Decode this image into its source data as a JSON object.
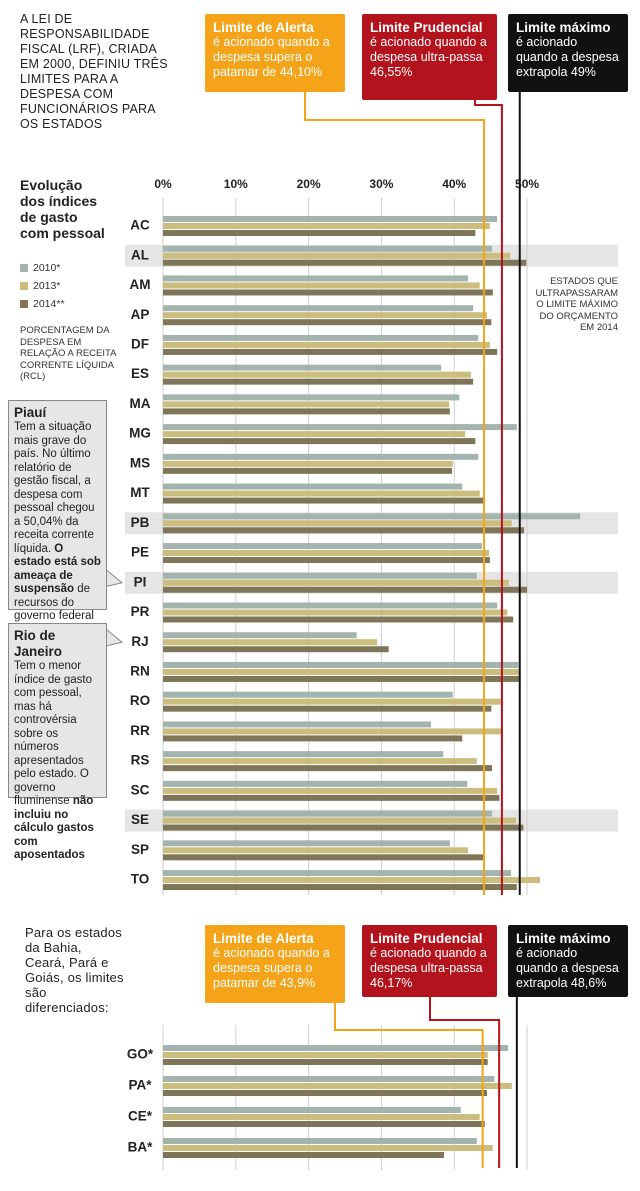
{
  "chart_data": [
    {
      "type": "bar",
      "intro": "A LEI DE RESPONSABILIDADE FISCAL (LRF), CRIADA EM 2000, DEFINIU TRÊS LIMITES PARA A DESPESA COM FUNCIONÁRIOS PARA OS ESTADOS",
      "legend_title": "Evolução dos índices de gasto com pessoal",
      "note": "PORCENTAGEM DA DESPESA EM RELAÇÃO A RECEITA CORRENTE LÍQUIDA (RCL)",
      "annotation": "ESTADOS QUE ULTRAPASSARAM O LIMITE MÁXIMO DO ORÇAMENTO EM 2014",
      "categories": [
        "AC",
        "AL",
        "AM",
        "AP",
        "DF",
        "ES",
        "MA",
        "MG",
        "MS",
        "MT",
        "PB",
        "PE",
        "PI",
        "PR",
        "RJ",
        "RN",
        "RO",
        "RR",
        "RS",
        "SC",
        "SE",
        "SP",
        "TO"
      ],
      "highlighted": [
        false,
        true,
        false,
        false,
        false,
        false,
        false,
        false,
        false,
        false,
        true,
        false,
        true,
        false,
        false,
        false,
        false,
        false,
        false,
        false,
        true,
        false,
        false
      ],
      "series": [
        {
          "name": "2010*",
          "color": "#a3b3ad",
          "values": [
            45.9,
            45.2,
            41.9,
            42.6,
            43.3,
            38.2,
            40.7,
            48.6,
            43.3,
            41.1,
            57.3,
            43.8,
            43.1,
            45.9,
            26.6,
            48.8,
            39.8,
            36.8,
            38.5,
            41.8,
            45.2,
            39.4,
            47.8
          ]
        },
        {
          "name": "2013*",
          "color": "#cbbd7e",
          "values": [
            44.9,
            47.7,
            43.5,
            44.5,
            44.9,
            42.3,
            39.3,
            41.5,
            39.8,
            43.5,
            47.9,
            44.8,
            47.5,
            47.3,
            29.4,
            48.9,
            46.4,
            46.7,
            43.1,
            45.9,
            48.5,
            41.9,
            51.8
          ]
        },
        {
          "name": "2014**",
          "color": "#7f765a",
          "values": [
            42.9,
            49.9,
            45.3,
            45.1,
            45.9,
            42.6,
            39.4,
            42.9,
            39.7,
            44.0,
            49.6,
            44.9,
            50.0,
            48.1,
            31.0,
            49.0,
            45.1,
            41.1,
            45.2,
            46.2,
            49.5,
            44.0,
            48.6
          ]
        }
      ],
      "xlim": [
        0,
        62
      ],
      "xticks": [
        {
          "value": 0,
          "label": "0%"
        },
        {
          "value": 10,
          "label": "10%"
        },
        {
          "value": 20,
          "label": "20%"
        },
        {
          "value": 30,
          "label": "30%"
        },
        {
          "value": 40,
          "label": "40%"
        },
        {
          "value": 50,
          "label": "50%"
        }
      ],
      "show_tick_labels": true,
      "grid": true,
      "limits": [
        {
          "name": "Limite de Alerta",
          "text": "é acionado quando a despesa supera o patamar de 44,10%",
          "value": 44.1,
          "color": "#f5a419"
        },
        {
          "name": "Limite Prudencial",
          "text": "é acionado quando a despesa ultra-passa 46,55%",
          "value": 46.55,
          "color": "#b3131c"
        },
        {
          "name": "Limite máximo",
          "text": "é acionado quando a despesa extrapola 49%",
          "value": 49,
          "color": "#111111"
        }
      ],
      "callouts": [
        {
          "title": "Piauí",
          "parts": [
            {
              "text": "Tem a situação mais grave do país. No último relatório de gestão fiscal, a despesa com pessoal chegou a 50,04% da receita corrente líquida. ",
              "bold": false
            },
            {
              "text": "O estado está sob ameaça de suspensão",
              "bold": true
            },
            {
              "text": " de recursos do governo federal",
              "bold": false
            }
          ]
        },
        {
          "title": "Rio de Janeiro",
          "parts": [
            {
              "text": "Tem o menor índice de gasto com pessoal, mas há controvérsia sobre os números apresentados pelo estado. O governo fluminense ",
              "bold": false
            },
            {
              "text": "não incluiu no cálculo gastos com aposentados",
              "bold": true
            }
          ]
        }
      ]
    },
    {
      "type": "bar",
      "intro": "Para os estados da Bahia, Ceará, Pará e Goiás, os limites são diferenciados:",
      "categories": [
        "GO*",
        "PA*",
        "CE*",
        "BA*"
      ],
      "highlighted": [
        false,
        false,
        false,
        false
      ],
      "series": [
        {
          "color": "#a3b3ad",
          "values": [
            47.4,
            45.5,
            40.9,
            43.1
          ]
        },
        {
          "color": "#cbbd7e",
          "values": [
            44.6,
            47.9,
            43.5,
            45.3
          ]
        },
        {
          "color": "#7f765a",
          "values": [
            44.6,
            44.5,
            44.2,
            38.6
          ]
        }
      ],
      "xlim": [
        0,
        62
      ],
      "xticks": [
        0,
        10,
        20,
        30,
        40,
        50
      ],
      "show_tick_labels": false,
      "grid": true,
      "limits": [
        {
          "name": "Limite de Alerta",
          "text": "é acionado quando a despesa supera o patamar de 43,9%",
          "value": 43.9,
          "color": "#f5a419"
        },
        {
          "name": "Limite Prudencial",
          "text": "é acionado quando a despesa ultra-passa 46,17%",
          "value": 46.17,
          "color": "#b3131c"
        },
        {
          "name": "Limite máximo",
          "text": "é acionado quando a despesa extrapola 48,6%",
          "value": 48.6,
          "color": "#111111"
        }
      ]
    }
  ]
}
